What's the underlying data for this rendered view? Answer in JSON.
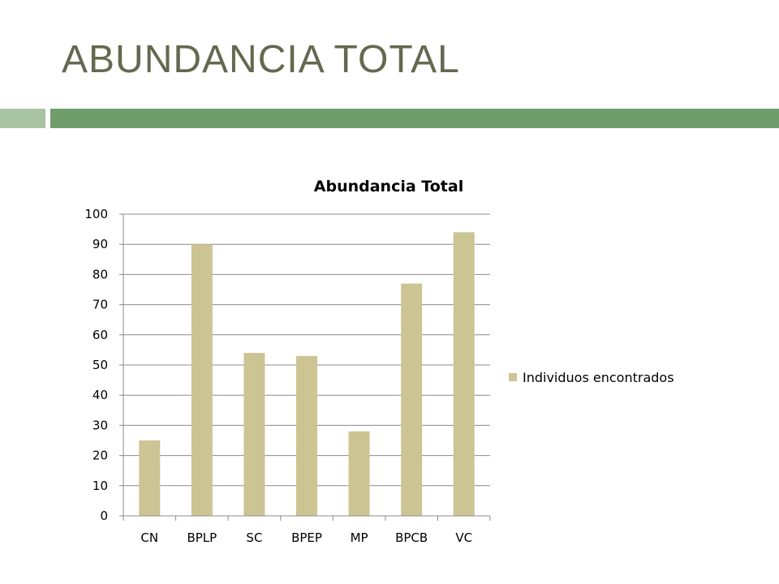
{
  "slide": {
    "title": "ABUNDANCIA TOTAL",
    "accent_light": "#a9c4a2",
    "accent_dark": "#6f9e6c",
    "title_color": "#64694f"
  },
  "chart_data": {
    "type": "bar",
    "title": "Abundancia Total",
    "categories": [
      "CN",
      "BPLP",
      "SC",
      "BPEP",
      "MP",
      "BPCB",
      "VC"
    ],
    "series": [
      {
        "name": "Individuos encontrados",
        "values": [
          25,
          90,
          54,
          53,
          28,
          77,
          94
        ],
        "color": "#cdc494"
      }
    ],
    "ylim": [
      0,
      100
    ],
    "yticks": [
      0,
      10,
      20,
      30,
      40,
      50,
      60,
      70,
      80,
      90,
      100
    ],
    "grid": true,
    "legend_position": "right"
  }
}
